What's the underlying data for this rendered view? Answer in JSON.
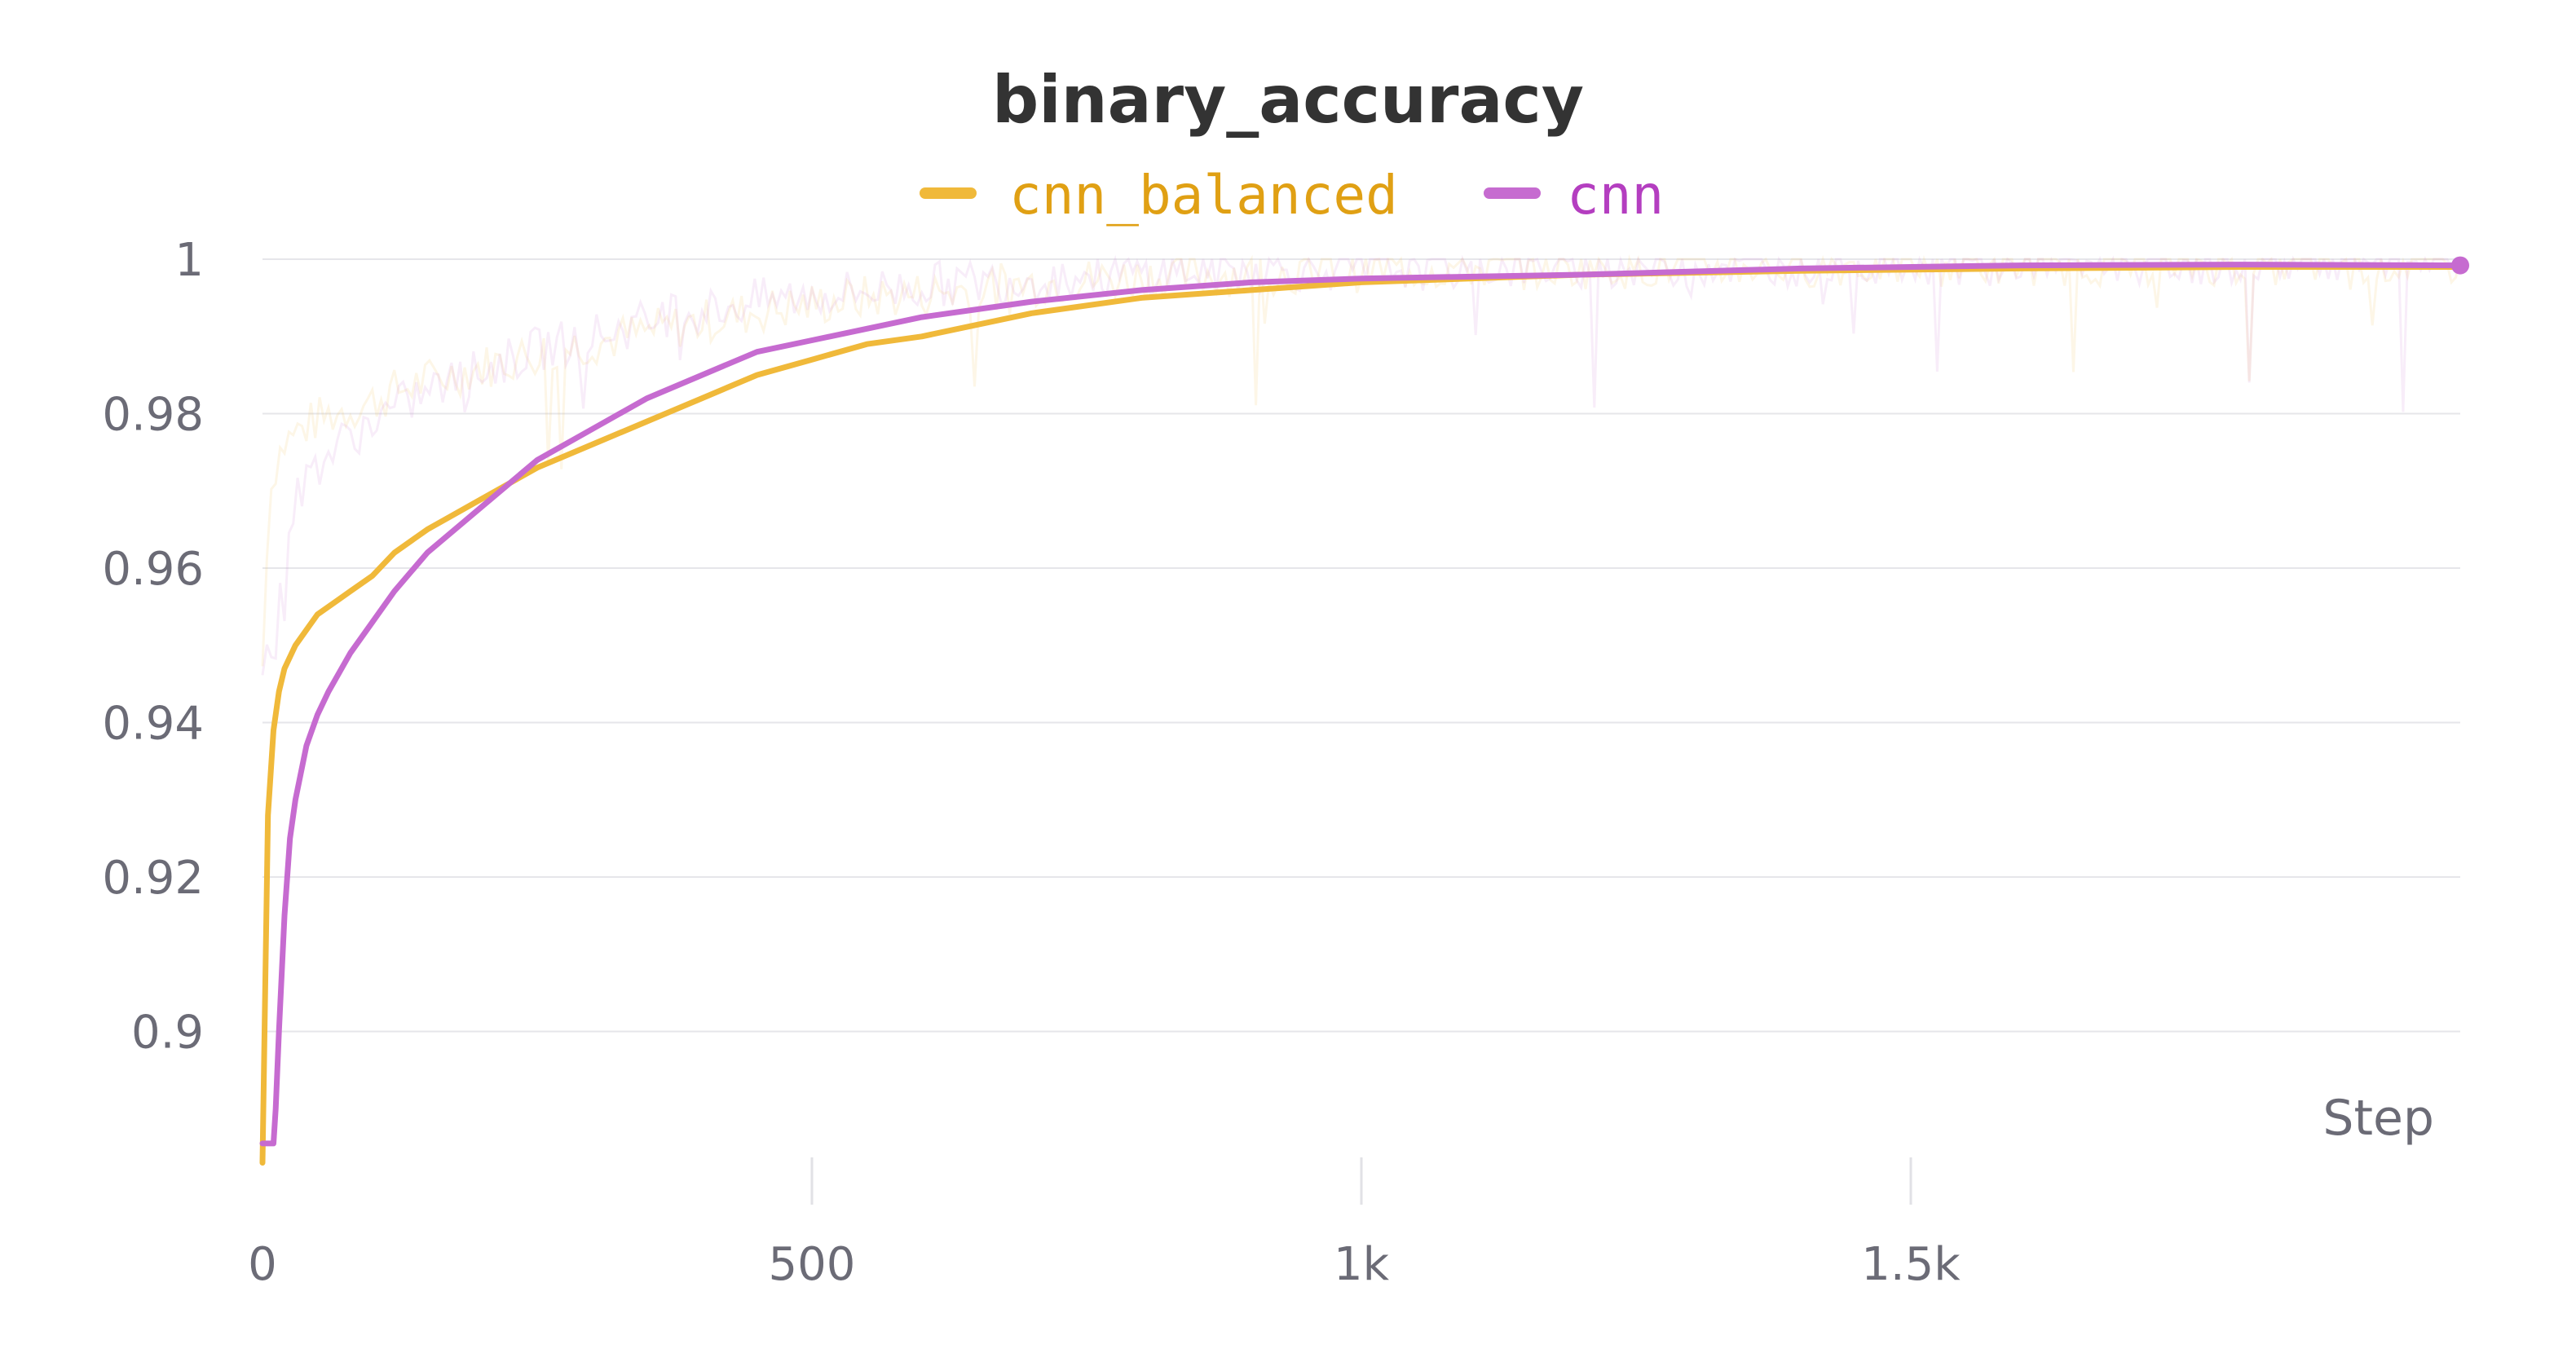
{
  "chart_data": {
    "type": "line",
    "title": "binary_accuracy",
    "xlabel": "Step",
    "ylabel": "",
    "xlim": [
      0,
      2000
    ],
    "ylim": [
      0.88,
      1.0
    ],
    "x_ticks": [
      0,
      500,
      1000,
      1500
    ],
    "x_tick_labels": [
      "0",
      "500",
      "1k",
      "1.5k"
    ],
    "y_ticks": [
      0.9,
      0.92,
      0.94,
      0.96,
      0.98,
      1.0
    ],
    "y_tick_labels": [
      "0.9",
      "0.92",
      "0.94",
      "0.96",
      "0.98",
      "1"
    ],
    "grid": true,
    "legend_position": "top-center",
    "series": [
      {
        "name": "cnn_balanced",
        "color": "#f0b93a",
        "label_color": "#e0a014",
        "x": [
          0,
          3,
          5,
          10,
          15,
          20,
          30,
          40,
          50,
          60,
          70,
          80,
          100,
          120,
          150,
          200,
          250,
          300,
          350,
          400,
          450,
          500,
          550,
          600,
          700,
          800,
          900,
          1000,
          1200,
          1400,
          1600,
          1800,
          2000
        ],
        "y": [
          0.883,
          0.91,
          0.928,
          0.939,
          0.944,
          0.947,
          0.95,
          0.952,
          0.954,
          0.955,
          0.956,
          0.957,
          0.959,
          0.962,
          0.965,
          0.969,
          0.973,
          0.976,
          0.979,
          0.982,
          0.985,
          0.987,
          0.989,
          0.99,
          0.993,
          0.995,
          0.996,
          0.997,
          0.998,
          0.9985,
          0.9988,
          0.999,
          0.999
        ]
      },
      {
        "name": "cnn",
        "color": "#c66bd0",
        "label_color": "#b43ec0",
        "x": [
          0,
          5,
          10,
          12,
          15,
          20,
          25,
          30,
          40,
          50,
          60,
          80,
          100,
          120,
          150,
          200,
          250,
          300,
          350,
          400,
          450,
          500,
          550,
          600,
          700,
          800,
          900,
          1000,
          1200,
          1400,
          1600,
          1800,
          2000
        ],
        "y": [
          0.8855,
          0.8855,
          0.8855,
          0.89,
          0.9,
          0.915,
          0.925,
          0.93,
          0.937,
          0.941,
          0.944,
          0.949,
          0.953,
          0.957,
          0.962,
          0.968,
          0.974,
          0.978,
          0.982,
          0.985,
          0.988,
          0.9895,
          0.991,
          0.9925,
          0.9945,
          0.996,
          0.997,
          0.9975,
          0.998,
          0.9988,
          0.9992,
          0.9993,
          0.9992
        ]
      }
    ]
  }
}
